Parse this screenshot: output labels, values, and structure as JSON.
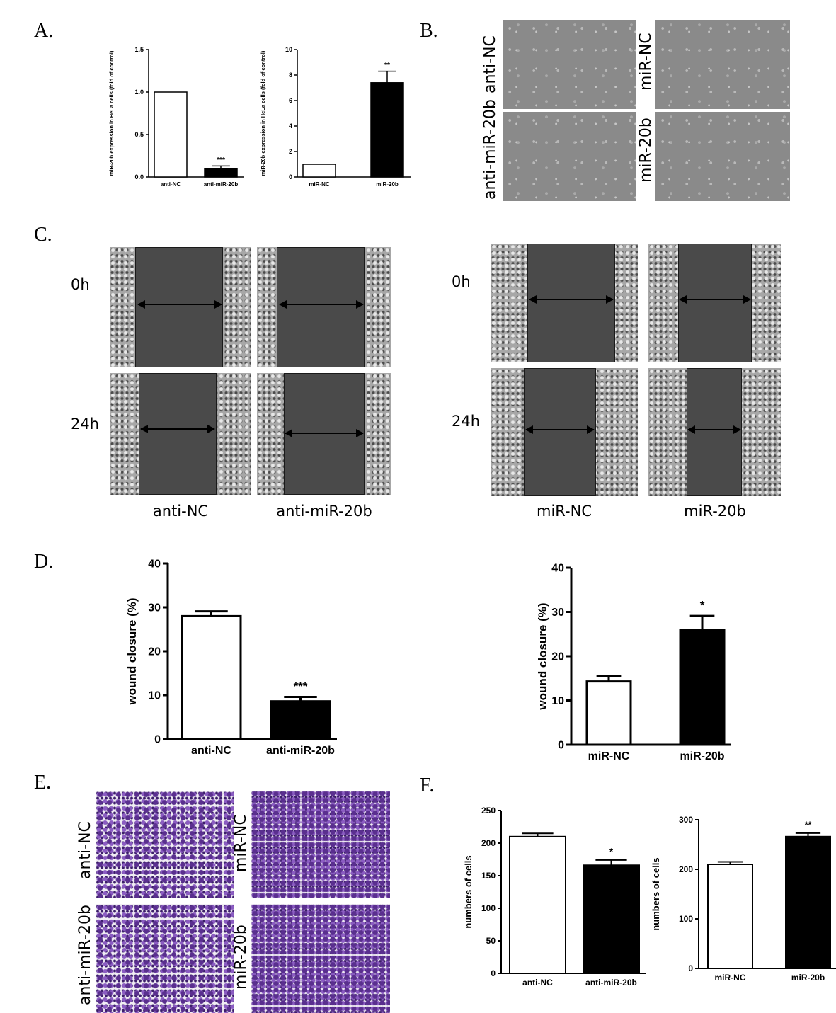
{
  "panels": {
    "a": "A.",
    "b": "B.",
    "c": "C.",
    "d": "D.",
    "e": "E.",
    "f": "F."
  },
  "panel_b": {
    "labels": [
      "anti-NC",
      "anti-miR-20b",
      "miR-NC",
      "miR-20b"
    ]
  },
  "panel_c": {
    "rows": [
      "0h",
      "24h",
      "0h",
      "24h"
    ],
    "columns": [
      "anti-NC",
      "anti-miR-20b",
      "miR-NC",
      "miR-20b"
    ]
  },
  "panel_e": {
    "labels": [
      "anti-NC",
      "anti-miR-20b",
      "miR-NC",
      "miR-20b"
    ]
  },
  "chart_data": [
    {
      "id": "a1",
      "type": "bar",
      "categories": [
        "anti-NC",
        "anti-miR-20b"
      ],
      "values": [
        1.0,
        0.1
      ],
      "errors": [
        0,
        0.03
      ],
      "significance": [
        "",
        "***"
      ],
      "ylabel": "miR-20b expression in HeLa cells (fold of control)",
      "ylim": [
        0,
        1.5
      ],
      "yticks": [
        0.0,
        0.5,
        1.0,
        1.5
      ],
      "tick_labels": [
        "0.0",
        "0.5",
        "1.0",
        "1.5"
      ]
    },
    {
      "id": "a2",
      "type": "bar",
      "categories": [
        "miR-NC",
        "miR-20b"
      ],
      "values": [
        1.0,
        7.4
      ],
      "errors": [
        0,
        0.9
      ],
      "significance": [
        "",
        "**"
      ],
      "ylabel": "miR-20b expression in HeLa cells (fold of control)",
      "ylim": [
        0,
        10
      ],
      "yticks": [
        0,
        2,
        4,
        6,
        8,
        10
      ],
      "tick_labels": [
        "0",
        "2",
        "4",
        "6",
        "8",
        "10"
      ]
    },
    {
      "id": "d1",
      "type": "bar",
      "categories": [
        "anti-NC",
        "anti-miR-20b"
      ],
      "values": [
        28,
        8.6
      ],
      "errors": [
        1.1,
        1.0
      ],
      "significance": [
        "",
        "***"
      ],
      "ylabel": "wound closure (%)",
      "ylim": [
        0,
        40
      ],
      "yticks": [
        0,
        10,
        20,
        30,
        40
      ],
      "tick_labels": [
        "0",
        "10",
        "20",
        "30",
        "40"
      ]
    },
    {
      "id": "d2",
      "type": "bar",
      "categories": [
        "miR-NC",
        "miR-20b"
      ],
      "values": [
        14.3,
        26
      ],
      "errors": [
        1.3,
        3.1
      ],
      "significance": [
        "",
        "*"
      ],
      "ylabel": "wound closure (%)",
      "ylim": [
        0,
        40
      ],
      "yticks": [
        0,
        10,
        20,
        30,
        40
      ],
      "tick_labels": [
        "0",
        "10",
        "20",
        "30",
        "40"
      ]
    },
    {
      "id": "f1",
      "type": "bar",
      "categories": [
        "anti-NC",
        "anti-miR-20b"
      ],
      "values": [
        210,
        166
      ],
      "errors": [
        5,
        8
      ],
      "significance": [
        "",
        "*"
      ],
      "ylabel": "numbers of cells",
      "ylim": [
        0,
        250
      ],
      "yticks": [
        0,
        50,
        100,
        150,
        200,
        250
      ],
      "tick_labels": [
        "0",
        "50",
        "100",
        "150",
        "200",
        "250"
      ]
    },
    {
      "id": "f2",
      "type": "bar",
      "categories": [
        "miR-NC",
        "miR-20b"
      ],
      "values": [
        210,
        266
      ],
      "errors": [
        5,
        7
      ],
      "significance": [
        "",
        "**"
      ],
      "ylabel": "numbers of cells",
      "ylim": [
        0,
        300
      ],
      "yticks": [
        0,
        100,
        200,
        300
      ],
      "tick_labels": [
        "0",
        "100",
        "200",
        "300"
      ]
    }
  ]
}
